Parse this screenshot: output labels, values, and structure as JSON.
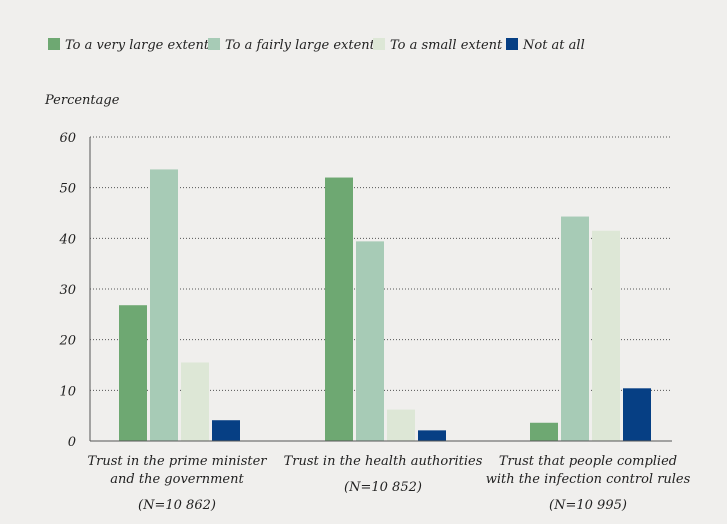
{
  "chart_data": {
    "type": "bar",
    "ylabel": "Percentage",
    "ylim": [
      0,
      60
    ],
    "yticks": [
      0,
      10,
      20,
      30,
      40,
      50,
      60
    ],
    "grid": true,
    "legend_position": "top-left",
    "categories": [
      {
        "lines": [
          "Trust in the prime minister",
          "and the government"
        ],
        "n": "(N=10 862)"
      },
      {
        "lines": [
          "Trust in the health authorities"
        ],
        "n": "(N=10 852)"
      },
      {
        "lines": [
          "Trust that people complied",
          "with the infection control rules"
        ],
        "n": "(N=10 995)"
      }
    ],
    "series": [
      {
        "name": "To a very large extent",
        "color": "#6ea872",
        "values": [
          26.8,
          52,
          3.6
        ]
      },
      {
        "name": "To a fairly large extent",
        "color": "#a7cbb6",
        "values": [
          53.6,
          39.4,
          44.3
        ]
      },
      {
        "name": "To a small extent",
        "color": "#dde7d6",
        "values": [
          15.5,
          6.2,
          41.5
        ]
      },
      {
        "name": "Not at all",
        "color": "#063f84",
        "values": [
          4.1,
          2.1,
          10.4
        ]
      }
    ]
  }
}
